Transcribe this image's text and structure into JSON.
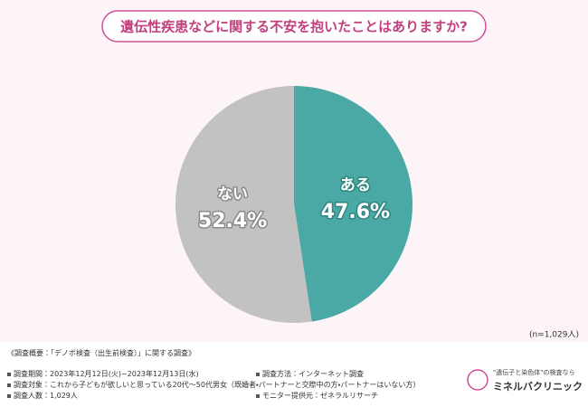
{
  "chart_data": {
    "type": "pie",
    "title": "遺伝性疾患などに関する不安を抱いたことはありますか?",
    "categories": [
      "ある",
      "ない"
    ],
    "values": [
      47.6,
      52.4
    ],
    "value_labels": [
      "47.6%",
      "52.4%"
    ],
    "colors": [
      "#4aa9a4",
      "#c2c2c2"
    ],
    "note": "(n=1,029人)"
  },
  "footer": {
    "header": "《調査概要：「デノボ検査（出生前検査）」に関する調査》",
    "left": [
      "調査期間：2023年12月12日(火)~2023年12月13日(水)",
      "調査対象：これから子どもが欲しいと思っている20代～50代男女（既婚者・パートナーと交際中の方・パートナーはいない方）",
      "調査人数：1,029人"
    ],
    "right": [
      "調査方法：インターネット調査",
      "モニター提供元：ゼネラルリサーチ"
    ],
    "logo_tagline": "\"遺伝子と染色体\"の検査なら",
    "logo_name": "ミネルバクリニック"
  }
}
